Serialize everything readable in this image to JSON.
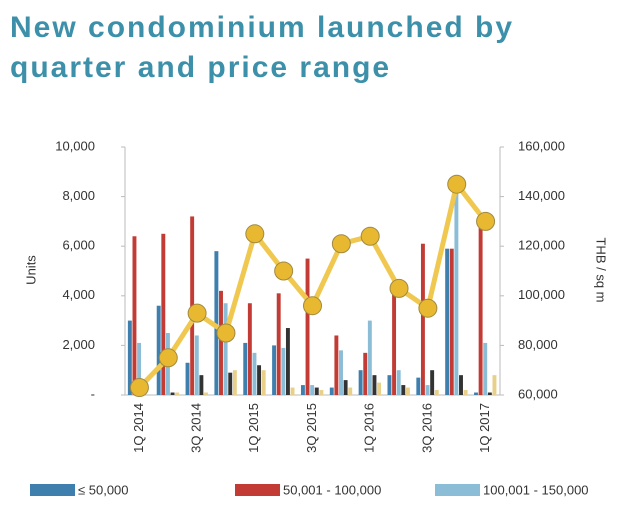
{
  "chart_data": {
    "type": "bar-line",
    "title": "New condominium launched by quarter and price range",
    "y_label": "Units",
    "y2_label": "THB / sq m",
    "categories": [
      "1Q 2014",
      null,
      "3Q 2014",
      null,
      "1Q 2015",
      null,
      "3Q 2015",
      null,
      "1Q 2016",
      null,
      "3Q 2016",
      null,
      "1Q 2017"
    ],
    "ylim": [
      0,
      10000
    ],
    "yticks": [
      {
        "value": 0,
        "label": "-"
      },
      {
        "value": 2000,
        "label": "2,000"
      },
      {
        "value": 4000,
        "label": "4,000"
      },
      {
        "value": 6000,
        "label": "6,000"
      },
      {
        "value": 8000,
        "label": "8,000"
      },
      {
        "value": 10000,
        "label": "10,000"
      }
    ],
    "y2lim": [
      60000,
      160000
    ],
    "y2ticks": [
      {
        "value": 60000,
        "label": "60,000"
      },
      {
        "value": 80000,
        "label": "80,000"
      },
      {
        "value": 100000,
        "label": "100,000"
      },
      {
        "value": 120000,
        "label": "120,000"
      },
      {
        "value": 140000,
        "label": "140,000"
      },
      {
        "value": 160000,
        "label": "160,000"
      }
    ],
    "series": [
      {
        "name": "≤ 50,000",
        "color": "#3f7fae",
        "values": [
          3000,
          3600,
          1300,
          5800,
          2100,
          2000,
          400,
          300,
          1000,
          800,
          700,
          5900,
          100
        ]
      },
      {
        "name": "50,001 - 100,000",
        "color": "#c23b35",
        "values": [
          6400,
          6500,
          7200,
          4200,
          3700,
          4100,
          5500,
          2400,
          1700,
          4300,
          6100,
          5900,
          6800
        ]
      },
      {
        "name": "100,001 - 150,000",
        "color": "#8bbdd6",
        "values": [
          2100,
          2500,
          2400,
          3700,
          1700,
          1900,
          400,
          1800,
          3000,
          1000,
          400,
          8500,
          2100
        ]
      },
      {
        "color": "#333333",
        "values": [
          0,
          100,
          800,
          900,
          1200,
          2700,
          300,
          600,
          800,
          400,
          1000,
          800,
          100
        ]
      },
      {
        "color": "#e8d08a",
        "values": [
          0,
          100,
          100,
          1000,
          1000,
          300,
          200,
          300,
          500,
          300,
          200,
          200,
          800
        ]
      },
      {
        "type": "line",
        "axis": "y2",
        "color": "#f0c850",
        "marker_color": "#e8b830",
        "values": [
          63000,
          75000,
          93000,
          85000,
          125000,
          110000,
          96000,
          121000,
          124000,
          103000,
          95000,
          145000,
          130000
        ]
      }
    ]
  }
}
